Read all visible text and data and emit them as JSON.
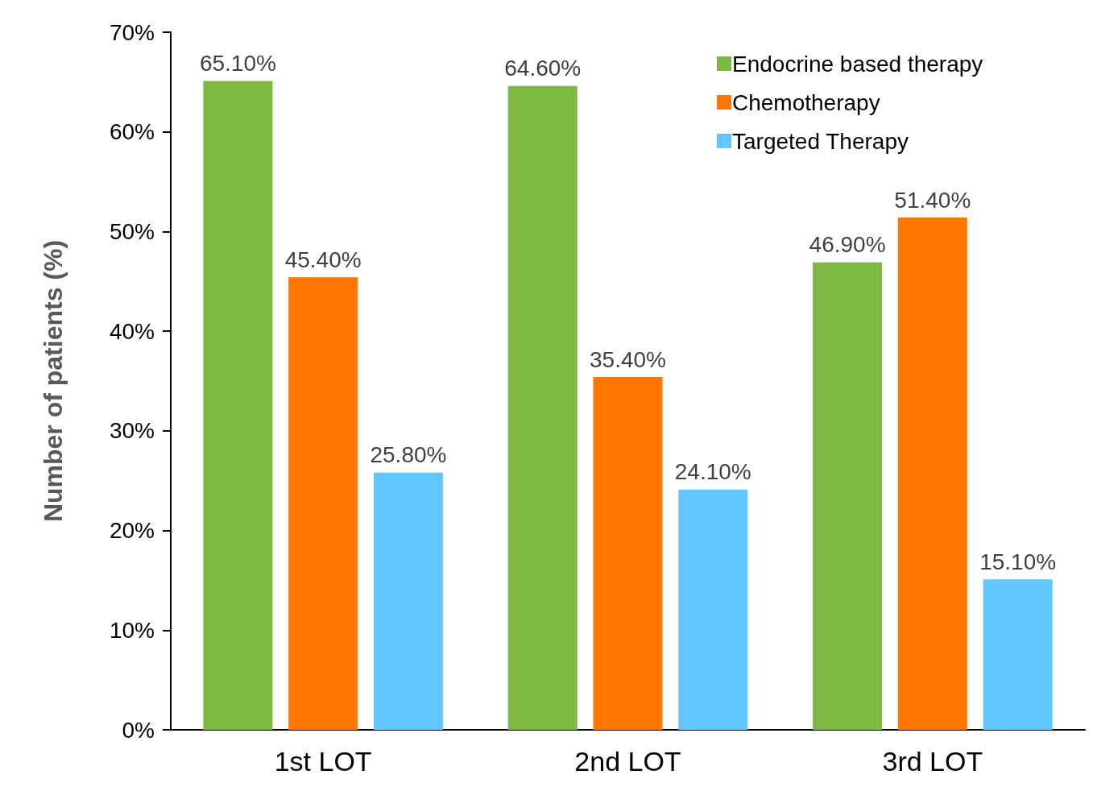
{
  "chart_data": {
    "type": "bar",
    "ylabel": "Number of patients (%)",
    "categories": [
      "1st LOT",
      "2nd LOT",
      "3rd LOT"
    ],
    "series": [
      {
        "name": "Endocrine based therapy",
        "color": "#7cb842",
        "values": [
          65.1,
          64.6,
          46.9
        ],
        "value_labels": [
          "65.10%",
          "64.60%",
          "46.90%"
        ]
      },
      {
        "name": "Chemotherapy",
        "color": "#ff7700",
        "values": [
          45.4,
          35.4,
          51.4
        ],
        "value_labels": [
          "45.40%",
          "35.40%",
          "51.40%"
        ]
      },
      {
        "name": "Targeted Therapy",
        "color": "#62c6ff",
        "values": [
          25.8,
          24.1,
          15.1
        ],
        "value_labels": [
          "25.80%",
          "24.10%",
          "15.10%"
        ]
      }
    ],
    "ylim": [
      0,
      70
    ],
    "yticks": [
      {
        "value": 0,
        "label": "0%"
      },
      {
        "value": 10,
        "label": "10%"
      },
      {
        "value": 20,
        "label": "20%"
      },
      {
        "value": 30,
        "label": "30%"
      },
      {
        "value": 40,
        "label": "40%"
      },
      {
        "value": 50,
        "label": "50%"
      },
      {
        "value": 60,
        "label": "60%"
      },
      {
        "value": 70,
        "label": "70%"
      }
    ],
    "grid": false,
    "legend": "top right"
  }
}
